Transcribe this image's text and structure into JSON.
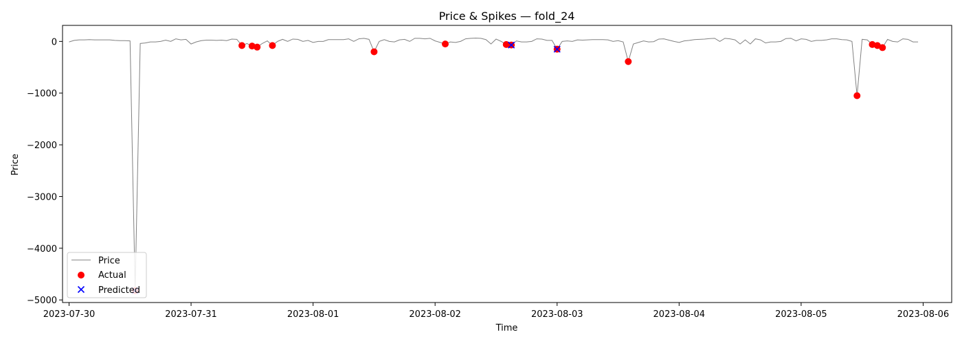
{
  "chart_data": {
    "type": "scatter",
    "title": "Price & Spikes — fold_24",
    "xlabel": "Time",
    "ylabel": "Price",
    "x_range": [
      "2023-07-29T22:43",
      "2023-08-06T05:37"
    ],
    "ylim": [
      -5050,
      310
    ],
    "x_ticks": [
      "2023-07-30",
      "2023-07-31",
      "2023-08-01",
      "2023-08-02",
      "2023-08-03",
      "2023-08-04",
      "2023-08-05",
      "2023-08-06"
    ],
    "y_ticks": [
      0,
      -1000,
      -2000,
      -3000,
      -4000,
      -5000
    ],
    "y_tick_labels": [
      "0",
      "−1000",
      "−2000",
      "−3000",
      "−4000",
      "−5000"
    ],
    "grid": false,
    "legend": {
      "position": "lower-left",
      "entries": [
        "Price",
        "Actual",
        "Predicted"
      ]
    },
    "colors": {
      "price": "#808080",
      "actual": "#ff0000",
      "predicted": "#0000ff"
    },
    "series": [
      {
        "name": "Price",
        "kind": "line",
        "points": [
          [
            "2023-07-30T00:00",
            -10
          ],
          [
            "2023-07-30T01:00",
            20
          ],
          [
            "2023-07-30T02:00",
            30
          ],
          [
            "2023-07-30T03:00",
            30
          ],
          [
            "2023-07-30T04:00",
            35
          ],
          [
            "2023-07-30T05:00",
            30
          ],
          [
            "2023-07-30T06:00",
            30
          ],
          [
            "2023-07-30T07:00",
            30
          ],
          [
            "2023-07-30T08:00",
            30
          ],
          [
            "2023-07-30T09:00",
            20
          ],
          [
            "2023-07-30T10:00",
            15
          ],
          [
            "2023-07-30T11:00",
            15
          ],
          [
            "2023-07-30T12:00",
            10
          ],
          [
            "2023-07-30T13:00",
            -4820
          ],
          [
            "2023-07-30T14:00",
            -40
          ],
          [
            "2023-07-30T15:00",
            -30
          ],
          [
            "2023-07-30T16:00",
            -10
          ],
          [
            "2023-07-30T17:00",
            -10
          ],
          [
            "2023-07-30T18:00",
            0
          ],
          [
            "2023-07-30T19:00",
            25
          ],
          [
            "2023-07-30T20:00",
            0
          ],
          [
            "2023-07-30T21:00",
            50
          ],
          [
            "2023-07-30T22:00",
            30
          ],
          [
            "2023-07-30T23:00",
            40
          ],
          [
            "2023-07-31T00:00",
            -50
          ],
          [
            "2023-07-31T01:00",
            -10
          ],
          [
            "2023-07-31T02:00",
            15
          ],
          [
            "2023-07-31T03:00",
            25
          ],
          [
            "2023-07-31T04:00",
            25
          ],
          [
            "2023-07-31T05:00",
            20
          ],
          [
            "2023-07-31T06:00",
            25
          ],
          [
            "2023-07-31T07:00",
            15
          ],
          [
            "2023-07-31T08:00",
            45
          ],
          [
            "2023-07-31T09:00",
            40
          ],
          [
            "2023-07-31T10:00",
            -80
          ],
          [
            "2023-07-31T11:00",
            -40
          ],
          [
            "2023-07-31T12:00",
            -90
          ],
          [
            "2023-07-31T13:00",
            -110
          ],
          [
            "2023-07-31T14:00",
            -40
          ],
          [
            "2023-07-31T15:00",
            10
          ],
          [
            "2023-07-31T16:00",
            -80
          ],
          [
            "2023-07-31T17:00",
            0
          ],
          [
            "2023-07-31T18:00",
            40
          ],
          [
            "2023-07-31T19:00",
            0
          ],
          [
            "2023-07-31T20:00",
            45
          ],
          [
            "2023-07-31T21:00",
            40
          ],
          [
            "2023-07-31T22:00",
            0
          ],
          [
            "2023-07-31T23:00",
            20
          ],
          [
            "2023-08-01T00:00",
            -20
          ],
          [
            "2023-08-01T01:00",
            0
          ],
          [
            "2023-08-01T02:00",
            0
          ],
          [
            "2023-08-01T03:00",
            35
          ],
          [
            "2023-08-01T04:00",
            35
          ],
          [
            "2023-08-01T05:00",
            35
          ],
          [
            "2023-08-01T06:00",
            35
          ],
          [
            "2023-08-01T07:00",
            50
          ],
          [
            "2023-08-01T08:00",
            0
          ],
          [
            "2023-08-01T09:00",
            50
          ],
          [
            "2023-08-01T10:00",
            60
          ],
          [
            "2023-08-01T11:00",
            40
          ],
          [
            "2023-08-01T12:00",
            -200
          ],
          [
            "2023-08-01T13:00",
            0
          ],
          [
            "2023-08-01T14:00",
            35
          ],
          [
            "2023-08-01T15:00",
            0
          ],
          [
            "2023-08-01T16:00",
            -10
          ],
          [
            "2023-08-01T17:00",
            30
          ],
          [
            "2023-08-01T18:00",
            40
          ],
          [
            "2023-08-01T19:00",
            0
          ],
          [
            "2023-08-01T20:00",
            60
          ],
          [
            "2023-08-01T21:00",
            60
          ],
          [
            "2023-08-01T22:00",
            50
          ],
          [
            "2023-08-01T23:00",
            60
          ],
          [
            "2023-08-02T00:00",
            10
          ],
          [
            "2023-08-02T01:00",
            -20
          ],
          [
            "2023-08-02T02:00",
            -50
          ],
          [
            "2023-08-02T03:00",
            -10
          ],
          [
            "2023-08-02T04:00",
            -20
          ],
          [
            "2023-08-02T05:00",
            0
          ],
          [
            "2023-08-02T06:00",
            50
          ],
          [
            "2023-08-02T07:00",
            60
          ],
          [
            "2023-08-02T08:00",
            65
          ],
          [
            "2023-08-02T09:00",
            60
          ],
          [
            "2023-08-02T10:00",
            35
          ],
          [
            "2023-08-02T11:00",
            -50
          ],
          [
            "2023-08-02T12:00",
            45
          ],
          [
            "2023-08-02T13:00",
            0
          ],
          [
            "2023-08-02T14:00",
            -60
          ],
          [
            "2023-08-02T15:00",
            -70
          ],
          [
            "2023-08-02T16:00",
            10
          ],
          [
            "2023-08-02T17:00",
            -10
          ],
          [
            "2023-08-02T18:00",
            -10
          ],
          [
            "2023-08-02T19:00",
            0
          ],
          [
            "2023-08-02T20:00",
            50
          ],
          [
            "2023-08-02T21:00",
            45
          ],
          [
            "2023-08-02T22:00",
            20
          ],
          [
            "2023-08-02T23:00",
            20
          ],
          [
            "2023-08-03T00:00",
            -150
          ],
          [
            "2023-08-03T01:00",
            0
          ],
          [
            "2023-08-03T02:00",
            10
          ],
          [
            "2023-08-03T03:00",
            0
          ],
          [
            "2023-08-03T04:00",
            30
          ],
          [
            "2023-08-03T05:00",
            25
          ],
          [
            "2023-08-03T06:00",
            30
          ],
          [
            "2023-08-03T07:00",
            35
          ],
          [
            "2023-08-03T08:00",
            35
          ],
          [
            "2023-08-03T09:00",
            35
          ],
          [
            "2023-08-03T10:00",
            30
          ],
          [
            "2023-08-03T11:00",
            0
          ],
          [
            "2023-08-03T12:00",
            15
          ],
          [
            "2023-08-03T13:00",
            -10
          ],
          [
            "2023-08-03T14:00",
            -390
          ],
          [
            "2023-08-03T15:00",
            -50
          ],
          [
            "2023-08-03T16:00",
            -20
          ],
          [
            "2023-08-03T17:00",
            10
          ],
          [
            "2023-08-03T18:00",
            -10
          ],
          [
            "2023-08-03T19:00",
            -5
          ],
          [
            "2023-08-03T20:00",
            45
          ],
          [
            "2023-08-03T21:00",
            50
          ],
          [
            "2023-08-03T22:00",
            25
          ],
          [
            "2023-08-03T23:00",
            0
          ],
          [
            "2023-08-04T00:00",
            -20
          ],
          [
            "2023-08-04T01:00",
            10
          ],
          [
            "2023-08-04T02:00",
            20
          ],
          [
            "2023-08-04T03:00",
            35
          ],
          [
            "2023-08-04T04:00",
            40
          ],
          [
            "2023-08-04T05:00",
            45
          ],
          [
            "2023-08-04T06:00",
            55
          ],
          [
            "2023-08-04T07:00",
            60
          ],
          [
            "2023-08-04T08:00",
            0
          ],
          [
            "2023-08-04T09:00",
            60
          ],
          [
            "2023-08-04T10:00",
            50
          ],
          [
            "2023-08-04T11:00",
            30
          ],
          [
            "2023-08-04T12:00",
            -50
          ],
          [
            "2023-08-04T13:00",
            30
          ],
          [
            "2023-08-04T14:00",
            -50
          ],
          [
            "2023-08-04T15:00",
            50
          ],
          [
            "2023-08-04T16:00",
            30
          ],
          [
            "2023-08-04T17:00",
            -30
          ],
          [
            "2023-08-04T18:00",
            -10
          ],
          [
            "2023-08-04T19:00",
            -10
          ],
          [
            "2023-08-04T20:00",
            0
          ],
          [
            "2023-08-04T21:00",
            55
          ],
          [
            "2023-08-04T22:00",
            60
          ],
          [
            "2023-08-04T23:00",
            10
          ],
          [
            "2023-08-05T00:00",
            50
          ],
          [
            "2023-08-05T01:00",
            40
          ],
          [
            "2023-08-05T02:00",
            0
          ],
          [
            "2023-08-05T03:00",
            20
          ],
          [
            "2023-08-05T04:00",
            20
          ],
          [
            "2023-08-05T05:00",
            30
          ],
          [
            "2023-08-05T06:00",
            50
          ],
          [
            "2023-08-05T07:00",
            50
          ],
          [
            "2023-08-05T08:00",
            35
          ],
          [
            "2023-08-05T09:00",
            30
          ],
          [
            "2023-08-05T10:00",
            0
          ],
          [
            "2023-08-05T11:00",
            -1050
          ],
          [
            "2023-08-05T12:00",
            40
          ],
          [
            "2023-08-05T13:00",
            30
          ],
          [
            "2023-08-05T14:00",
            -60
          ],
          [
            "2023-08-05T15:00",
            -80
          ],
          [
            "2023-08-05T16:00",
            -120
          ],
          [
            "2023-08-05T17:00",
            40
          ],
          [
            "2023-08-05T18:00",
            0
          ],
          [
            "2023-08-05T19:00",
            -10
          ],
          [
            "2023-08-05T20:00",
            50
          ],
          [
            "2023-08-05T21:00",
            40
          ],
          [
            "2023-08-05T22:00",
            -10
          ],
          [
            "2023-08-05T23:00",
            -10
          ]
        ]
      },
      {
        "name": "Actual",
        "kind": "scatter",
        "marker": "circle",
        "points": [
          [
            "2023-07-30T13:00",
            -4820
          ],
          [
            "2023-07-31T10:00",
            -80
          ],
          [
            "2023-07-31T12:00",
            -90
          ],
          [
            "2023-07-31T13:00",
            -110
          ],
          [
            "2023-07-31T16:00",
            -80
          ],
          [
            "2023-08-01T12:00",
            -200
          ],
          [
            "2023-08-02T02:00",
            -50
          ],
          [
            "2023-08-02T14:00",
            -60
          ],
          [
            "2023-08-02T15:00",
            -70
          ],
          [
            "2023-08-03T00:00",
            -150
          ],
          [
            "2023-08-03T14:00",
            -390
          ],
          [
            "2023-08-05T11:00",
            -1050
          ],
          [
            "2023-08-05T14:00",
            -60
          ],
          [
            "2023-08-05T15:00",
            -80
          ],
          [
            "2023-08-05T16:00",
            -120
          ]
        ]
      },
      {
        "name": "Predicted",
        "kind": "scatter",
        "marker": "x",
        "points": [
          [
            "2023-07-30T13:00",
            -4820
          ],
          [
            "2023-08-02T15:00",
            -70
          ],
          [
            "2023-08-03T00:00",
            -150
          ]
        ]
      }
    ]
  }
}
